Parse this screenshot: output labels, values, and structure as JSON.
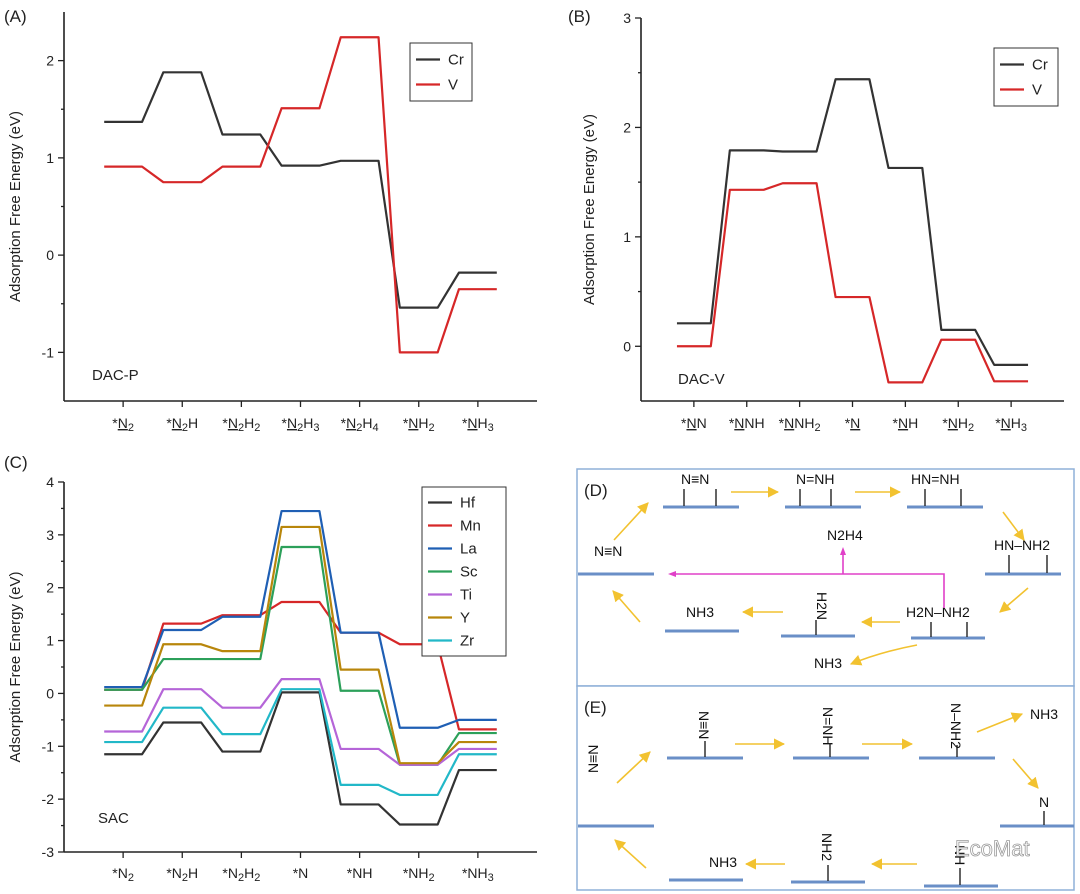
{
  "chart_data": [
    {
      "panel_label": "(A)",
      "type": "line",
      "style": "energy-step",
      "ylabel": "Adsorption Free Energy (eV)",
      "annotation": "DAC-P",
      "ylim": [
        -1.5,
        2.5
      ],
      "yticks": [
        2,
        1,
        0,
        -1
      ],
      "ytick_labels": [
        "2",
        "1",
        "0",
        "-1"
      ],
      "categories": [
        "*N2",
        "*N2H",
        "*N2H2",
        "*N2H3",
        "*N2H4",
        "*NH2",
        "*NH3"
      ],
      "category_labels": [
        {
          "pre": "*",
          "u": "N",
          "s": "2",
          "post": "",
          "s2": ""
        },
        {
          "pre": "*",
          "u": "N",
          "s": "2",
          "post": "H",
          "s2": ""
        },
        {
          "pre": "*",
          "u": "N",
          "s": "2",
          "post": "H",
          "s2": "2"
        },
        {
          "pre": "*",
          "u": "N",
          "s": "2",
          "post": "H",
          "s2": "3"
        },
        {
          "pre": "*",
          "u": "N",
          "s": "2",
          "post": "H",
          "s2": "4"
        },
        {
          "pre": "*",
          "u": "N",
          "s": "",
          "post": "H",
          "s2": "2"
        },
        {
          "pre": "*",
          "u": "N",
          "s": "",
          "post": "H",
          "s2": "3"
        }
      ],
      "legend_position": "top-right",
      "series": [
        {
          "name": "Cr",
          "color": "#333333",
          "values": [
            1.37,
            1.88,
            1.24,
            0.92,
            0.97,
            -0.54,
            -0.18
          ]
        },
        {
          "name": "V",
          "color": "#d62728",
          "values": [
            0.91,
            0.75,
            0.91,
            1.51,
            2.24,
            -1.0,
            -0.35
          ]
        }
      ]
    },
    {
      "panel_label": "(B)",
      "type": "line",
      "style": "energy-step",
      "ylabel": "Adsorption Free Energy (eV)",
      "annotation": "DAC-V",
      "ylim": [
        -0.5,
        3.0
      ],
      "yticks": [
        3,
        2,
        1,
        0
      ],
      "ytick_labels": [
        "3",
        "2",
        "1",
        "0"
      ],
      "categories": [
        "*NN",
        "*NNH",
        "*NNH2",
        "*N",
        "*NH",
        "*NH2",
        "*NH3"
      ],
      "category_labels": [
        {
          "pre": "*",
          "u": "N",
          "s": "",
          "post": "N",
          "s2": ""
        },
        {
          "pre": "*",
          "u": "N",
          "s": "",
          "post": "NH",
          "s2": ""
        },
        {
          "pre": "*",
          "u": "N",
          "s": "",
          "post": "NH",
          "s2": "2"
        },
        {
          "pre": "*",
          "u": "N",
          "s": "",
          "post": "",
          "s2": ""
        },
        {
          "pre": "*",
          "u": "N",
          "s": "",
          "post": "H",
          "s2": ""
        },
        {
          "pre": "*",
          "u": "N",
          "s": "",
          "post": "H",
          "s2": "2"
        },
        {
          "pre": "*",
          "u": "N",
          "s": "",
          "post": "H",
          "s2": "3"
        }
      ],
      "legend_position": "top-right",
      "series": [
        {
          "name": "Cr",
          "color": "#333333",
          "values": [
            0.21,
            1.79,
            1.78,
            2.44,
            1.63,
            0.15,
            -0.17
          ]
        },
        {
          "name": "V",
          "color": "#d62728",
          "values": [
            0.0,
            1.43,
            1.49,
            0.45,
            -0.33,
            0.06,
            -0.32
          ]
        }
      ]
    },
    {
      "panel_label": "(C)",
      "type": "line",
      "style": "energy-step",
      "ylabel": "Adsorption Free Energy (eV)",
      "annotation": "SAC",
      "ylim": [
        -3,
        4
      ],
      "yticks": [
        4,
        3,
        2,
        1,
        0,
        -1,
        -2,
        -3
      ],
      "ytick_labels": [
        "4",
        "3",
        "2",
        "1",
        "0",
        "-1",
        "-2",
        "-3"
      ],
      "categories": [
        "*N2",
        "*N2H",
        "*N2H2",
        "*N",
        "*NH",
        "*NH2",
        "*NH3"
      ],
      "category_labels": [
        {
          "pre": "*N",
          "u": "",
          "s": "2",
          "post": "",
          "s2": ""
        },
        {
          "pre": "*N",
          "u": "",
          "s": "2",
          "post": "H",
          "s2": ""
        },
        {
          "pre": "*N",
          "u": "",
          "s": "2",
          "post": "H",
          "s2": "2"
        },
        {
          "pre": "*N",
          "u": "",
          "s": "",
          "post": "",
          "s2": ""
        },
        {
          "pre": "*NH",
          "u": "",
          "s": "",
          "post": "",
          "s2": ""
        },
        {
          "pre": "*NH",
          "u": "",
          "s": "2",
          "post": "",
          "s2": ""
        },
        {
          "pre": "*NH",
          "u": "",
          "s": "3",
          "post": "",
          "s2": ""
        }
      ],
      "legend_position": "top-right",
      "series": [
        {
          "name": "Hf",
          "color": "#333333",
          "values": [
            -1.15,
            -0.55,
            -1.1,
            0.02,
            -2.1,
            -2.48,
            -1.45
          ]
        },
        {
          "name": "Mn",
          "color": "#d62728",
          "values": [
            0.07,
            1.32,
            1.48,
            1.73,
            1.15,
            0.93,
            -0.68
          ]
        },
        {
          "name": "La",
          "color": "#1f5fb4",
          "values": [
            0.12,
            1.2,
            1.45,
            3.45,
            1.15,
            -0.65,
            -0.5
          ]
        },
        {
          "name": "Sc",
          "color": "#2ca05a",
          "values": [
            0.07,
            0.65,
            0.65,
            2.77,
            0.05,
            -1.35,
            -0.75
          ]
        },
        {
          "name": "Ti",
          "color": "#b565d8",
          "values": [
            -0.72,
            0.08,
            -0.27,
            0.27,
            -1.05,
            -1.35,
            -1.05
          ]
        },
        {
          "name": "Y",
          "color": "#b8860b",
          "values": [
            -0.23,
            0.93,
            0.8,
            3.15,
            0.45,
            -1.32,
            -0.92
          ]
        },
        {
          "name": "Zr",
          "color": "#22b8c8",
          "values": [
            -0.92,
            -0.27,
            -0.77,
            0.08,
            -1.73,
            -1.92,
            -1.15
          ]
        }
      ]
    }
  ],
  "scheme": {
    "panel_d": {
      "label": "(D)",
      "molecules": {
        "n2_free": "N≡N",
        "n2_top": "N≡N",
        "nnh": "N=NH",
        "hnnh": "HN=NH",
        "hnnh2": "HN–NH2",
        "h2nnh2": "H2N–NH2",
        "nh2": "H2N",
        "nh3_surface": "NH3",
        "nh3_released": "NH3",
        "n2h4_released": "N2H4"
      }
    },
    "panel_e": {
      "label": "(E)",
      "molecules": {
        "n2_free": "N≡N",
        "n2_ads": "N≡N",
        "nnh": "N=NH",
        "nnh2": "N–NH2",
        "nh3_released": "NH3",
        "n_ads": "N",
        "nh_ads": "NH",
        "nh2_ads": "NH2",
        "nh3_final": "NH3"
      }
    },
    "watermark": "EcoMat"
  }
}
